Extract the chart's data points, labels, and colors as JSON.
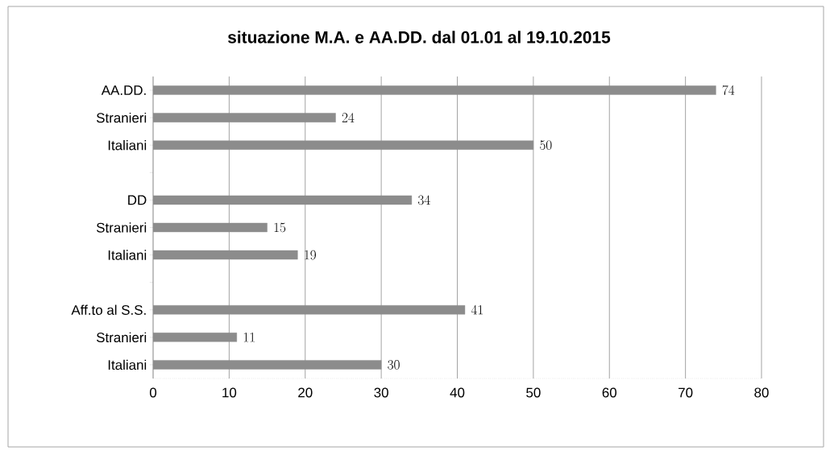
{
  "chart_data": {
    "type": "bar",
    "orientation": "horizontal",
    "title": "situazione  M.A.  e AA.DD. dal 01.01 al 19.10.2015",
    "categories": [
      "AA.DD.",
      "Stranieri",
      "Italiani",
      null,
      "DD",
      "Stranieri",
      "Italiani",
      null,
      "Aff.to al S.S.",
      "Stranieri",
      "Italiani"
    ],
    "values": [
      74,
      24,
      50,
      null,
      34,
      15,
      19,
      null,
      41,
      11,
      30
    ],
    "color": "#8c8c8c",
    "xlim": [
      0,
      80
    ],
    "xticks": [
      0,
      10,
      20,
      30,
      40,
      50,
      60,
      70,
      80
    ],
    "grid": "x",
    "data_labels": true
  }
}
